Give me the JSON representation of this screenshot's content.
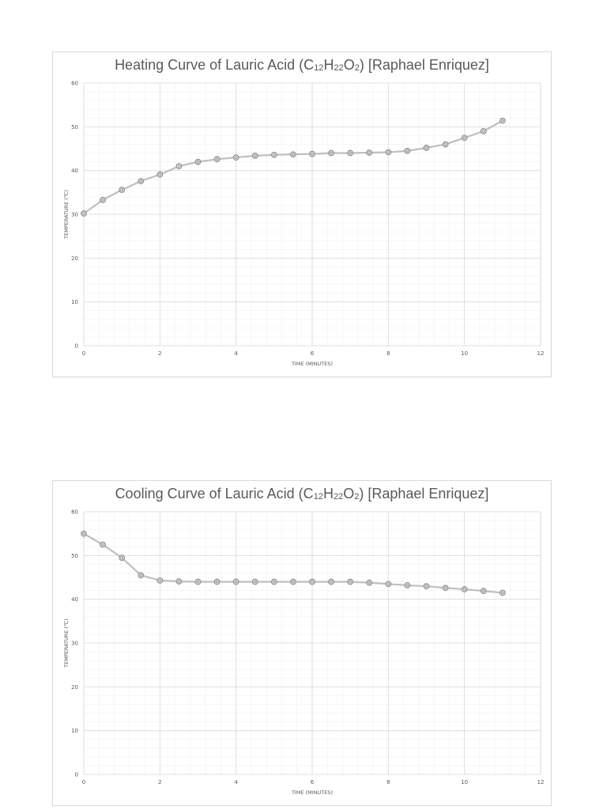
{
  "chart_data": [
    {
      "type": "line",
      "title_parts": [
        "Heating Curve of Lauric Acid (C",
        "12",
        "H",
        "22",
        "O",
        "2",
        ") [Raphael Enriquez]"
      ],
      "xlabel": "TIME (MINUTES)",
      "ylabel": "TEMPERATURE (℃)",
      "xlim": [
        0,
        12
      ],
      "ylim": [
        0,
        60
      ],
      "xticks": [
        0,
        2,
        4,
        6,
        8,
        10,
        12
      ],
      "yticks": [
        0,
        10,
        20,
        30,
        40,
        50,
        60
      ],
      "grid": true,
      "series_color": "#bfbfbf",
      "series": [
        {
          "x": [
            0,
            0.5,
            1,
            1.5,
            2,
            2.5,
            3,
            3.5,
            4,
            4.5,
            5,
            5.5,
            6,
            6.5,
            7,
            7.5,
            8,
            8.5,
            9,
            9.5,
            10,
            10.5,
            11
          ],
          "y": [
            30.2,
            33.3,
            35.6,
            37.6,
            39.1,
            41.0,
            42.0,
            42.6,
            43.0,
            43.4,
            43.6,
            43.7,
            43.8,
            44.0,
            44.0,
            44.1,
            44.2,
            44.5,
            45.2,
            46.0,
            47.5,
            49.0,
            51.4
          ]
        }
      ]
    },
    {
      "type": "line",
      "title_parts": [
        "Cooling Curve of Lauric Acid (C",
        "12",
        "H",
        "22",
        "O",
        "2",
        ") [Raphael Enriquez]"
      ],
      "xlabel": "TIME (MINUTES)",
      "ylabel": "TEMPERATURE (℃)",
      "xlim": [
        0,
        12
      ],
      "ylim": [
        0,
        60
      ],
      "xticks": [
        0,
        2,
        4,
        6,
        8,
        10,
        12
      ],
      "yticks": [
        0,
        10,
        20,
        30,
        40,
        50,
        60
      ],
      "grid": true,
      "series_color": "#bfbfbf",
      "series": [
        {
          "x": [
            0,
            0.5,
            1,
            1.5,
            2,
            2.5,
            3,
            3.5,
            4,
            4.5,
            5,
            5.5,
            6,
            6.5,
            7,
            7.5,
            8,
            8.5,
            9,
            9.5,
            10,
            10.5,
            11
          ],
          "y": [
            55.0,
            52.5,
            49.5,
            45.5,
            44.3,
            44.1,
            44.0,
            44.0,
            44.0,
            44.0,
            44.0,
            44.0,
            44.0,
            44.0,
            44.0,
            43.8,
            43.5,
            43.2,
            43.0,
            42.6,
            42.3,
            41.9,
            41.5
          ]
        }
      ]
    }
  ]
}
